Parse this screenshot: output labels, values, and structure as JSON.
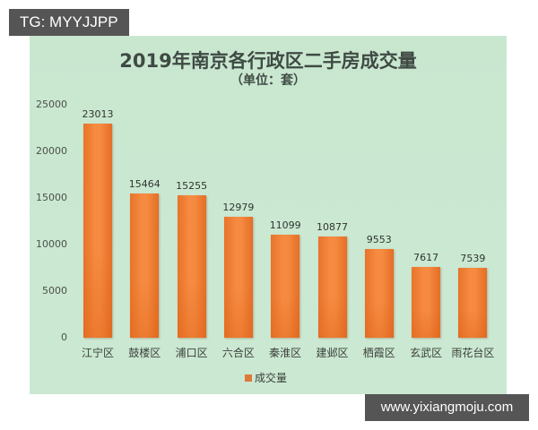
{
  "badge": {
    "text": "TG: MYYJJPP"
  },
  "watermark": {
    "text": "www.yixiangmoju.com"
  },
  "chart_data": {
    "type": "bar",
    "title": "2019年南京各行政区二手房成交量",
    "subtitle": "（单位：套）",
    "xlabel": "",
    "ylabel": "",
    "ylim": [
      0,
      25000
    ],
    "yticks": [
      "0",
      "5000",
      "10000",
      "15000",
      "20000",
      "25000"
    ],
    "grid": false,
    "legend_position": "bottom",
    "categories": [
      "江宁区",
      "鼓楼区",
      "浦口区",
      "六合区",
      "秦淮区",
      "建邺区",
      "栖霞区",
      "玄武区",
      "雨花台区"
    ],
    "series": [
      {
        "name": "成交量",
        "color": "#f07f35",
        "values": [
          23013,
          15464,
          15255,
          12979,
          11099,
          10877,
          9553,
          7617,
          7539
        ]
      }
    ],
    "data_labels": [
      "23013",
      "15464",
      "15255",
      "12979",
      "11099",
      "10877",
      "9553",
      "7617",
      "7539"
    ]
  },
  "colors": {
    "panel_bg": "#c9e7cf",
    "bar": "#f07f35",
    "badge_bg": "#555555"
  }
}
